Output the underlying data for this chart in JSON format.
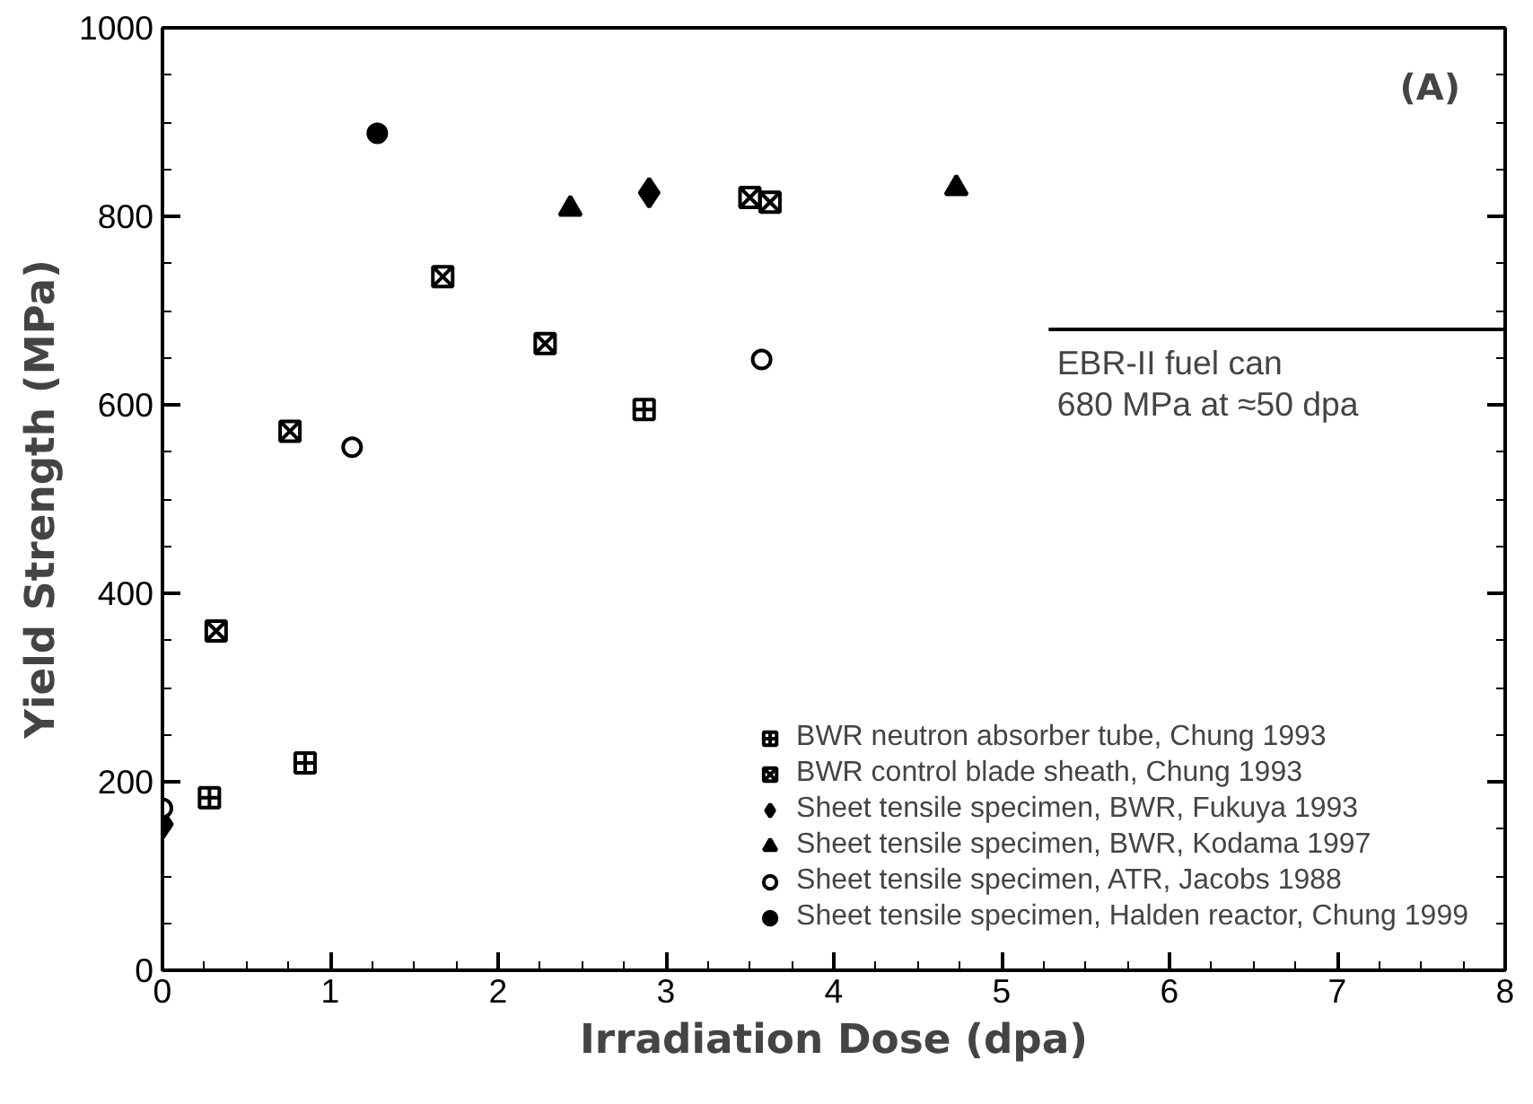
{
  "chart_data": {
    "type": "scatter",
    "xlabel": "Irradiation Dose (dpa)",
    "ylabel": "Yield Strength (MPa)",
    "xlim": [
      0,
      8
    ],
    "ylim": [
      0,
      1000
    ],
    "xticks": [
      0,
      1,
      2,
      3,
      4,
      5,
      6,
      7,
      8
    ],
    "yticks": [
      0,
      200,
      400,
      600,
      800,
      1000
    ],
    "grid": false,
    "legend": "bottom right",
    "series": [
      {
        "name": "BWR neutron absorber tube, Chung 1993",
        "color": "#000000",
        "marker": "cross",
        "x": [
          0.28,
          0.85,
          2.87
        ],
        "values": [
          183,
          220,
          595
        ]
      },
      {
        "name": "BWR control blade sheath, Chung 1993",
        "color": "#000000",
        "marker": "cross",
        "x": [
          0.32,
          0.76,
          1.67,
          2.28,
          3.5,
          3.62
        ],
        "values": [
          360,
          572,
          736,
          665,
          820,
          815
        ]
      },
      {
        "name": "Sheet tensile specimen, BWR, Fukuya 1993",
        "color": "#000000",
        "marker": "diamond",
        "x": [
          0,
          2.9
        ],
        "values": [
          155,
          825
        ]
      },
      {
        "name": "Sheet tensile specimen, BWR, Kodama 1997",
        "color": "#000000",
        "marker": "triangle",
        "x": [
          2.43,
          4.73
        ],
        "values": [
          808,
          830
        ]
      },
      {
        "name": "Sheet tensile specimen, ATR, Jacobs 1988",
        "color": "#000000",
        "marker": "circle",
        "x": [
          0,
          1.13,
          3.57
        ],
        "values": [
          172,
          555,
          648
        ]
      },
      {
        "name": "Sheet tensile specimen, Halden reactor, Chung 1999",
        "color": "#000000",
        "marker": "circle",
        "x": [
          1.28
        ],
        "values": [
          888
        ]
      }
    ],
    "ref_lines": [
      {
        "axis": "y",
        "value": 680,
        "label": "EBR-II fuel can\n680 MPa at ≈50 dpa",
        "color": "#000000"
      }
    ],
    "annotations": [
      "(A)"
    ]
  }
}
